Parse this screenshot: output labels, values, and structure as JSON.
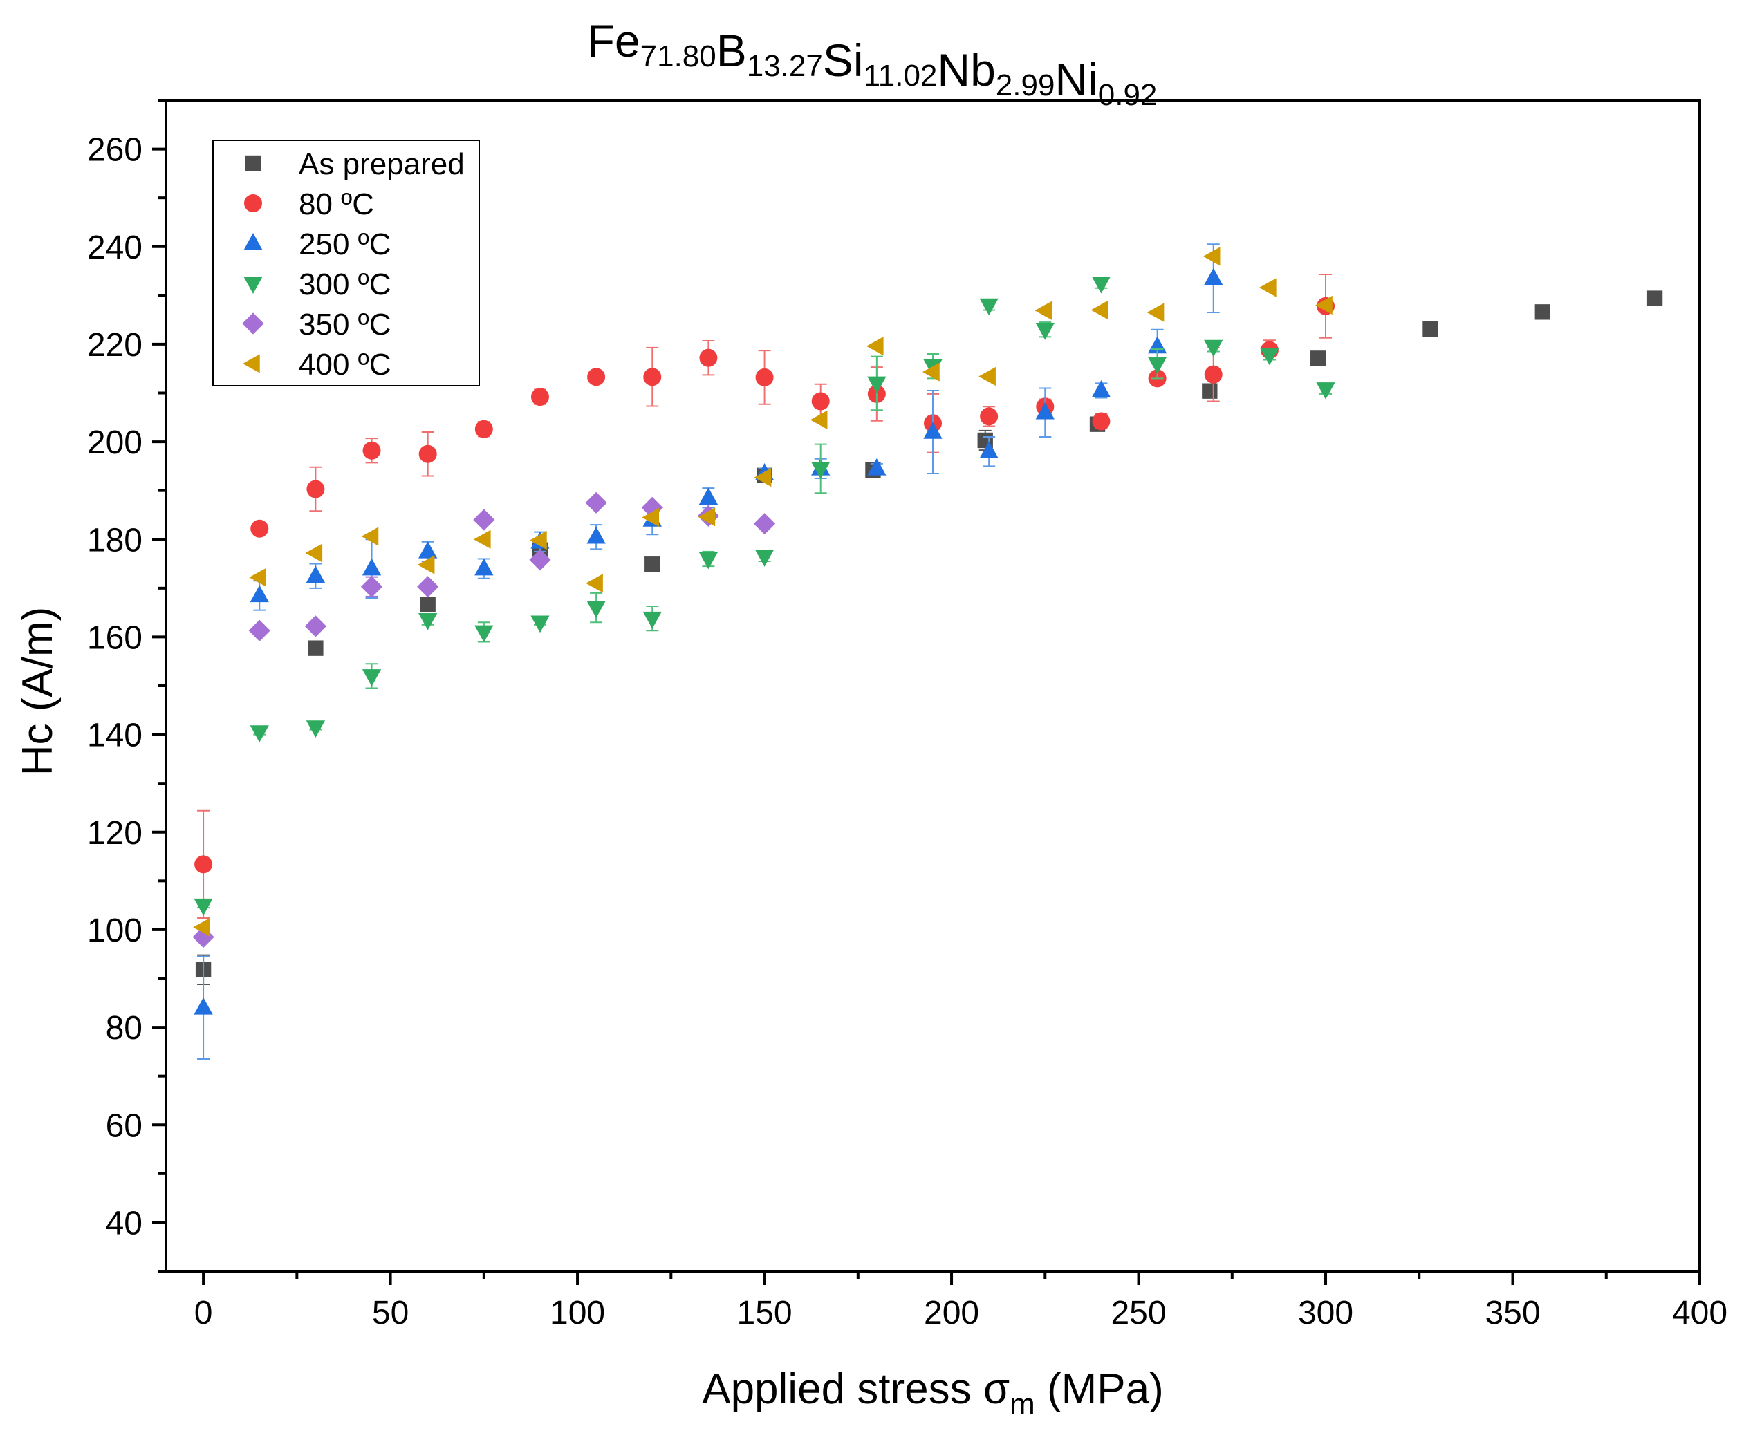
{
  "chart_data": {
    "type": "scatter",
    "title": {
      "parts": [
        {
          "text": "Fe",
          "sub": "71.80"
        },
        {
          "text": "B",
          "sub": "13.27"
        },
        {
          "text": "Si",
          "sub": "11.02"
        },
        {
          "text": "Nb",
          "sub": "2.99"
        },
        {
          "text": "Ni",
          "sub": "0.92"
        }
      ]
    },
    "xlabel": {
      "main": "Applied stress ",
      "symbol": "σ",
      "sub": "m",
      "unit": " (MPa)"
    },
    "ylabel": "Hc (A/m)",
    "xlim": [
      -10,
      400
    ],
    "ylim": [
      30,
      270
    ],
    "xticks": [
      0,
      50,
      100,
      150,
      200,
      250,
      300,
      350,
      400
    ],
    "yticks": [
      40,
      60,
      80,
      100,
      120,
      140,
      160,
      180,
      200,
      220,
      240,
      260
    ],
    "legend_position": "top-left",
    "series": [
      {
        "name": "As prepared",
        "marker": "square",
        "color": "#4d4d4d",
        "errcolor": "#555555",
        "x": [
          0,
          30,
          60,
          90,
          120,
          150,
          179,
          209,
          239,
          269,
          298,
          328,
          358,
          388
        ],
        "y": [
          91.8,
          157.7,
          166.6,
          177.8,
          174.9,
          193.1,
          194.2,
          200.3,
          203.6,
          210.4,
          217.1,
          223.1,
          226.6,
          229.4
        ],
        "err": [
          3,
          1,
          1,
          1,
          1,
          1,
          1,
          2,
          1,
          1,
          1,
          0,
          0,
          0
        ]
      },
      {
        "name": "80 ºC",
        "marker": "circle",
        "color": "#f03c3c",
        "errcolor": "#f07070",
        "x": [
          0,
          15,
          30,
          45,
          60,
          75,
          90,
          105,
          120,
          135,
          150,
          165,
          180,
          195,
          210,
          225,
          240,
          255,
          270,
          285,
          300
        ],
        "y": [
          113.4,
          182.2,
          190.3,
          198.2,
          197.5,
          202.6,
          209.2,
          213.3,
          213.3,
          217.2,
          213.2,
          208.3,
          209.8,
          203.8,
          205.2,
          207.2,
          204.2,
          213.0,
          213.8,
          218.8,
          227.8
        ],
        "err": [
          11,
          1,
          4.5,
          2.5,
          4.5,
          1.5,
          1.5,
          1,
          6,
          3.5,
          5.5,
          3.5,
          5.5,
          6,
          2,
          1.5,
          1.5,
          1,
          5.5,
          2,
          6.5
        ]
      },
      {
        "name": "250 ºC",
        "marker": "triangle-up",
        "color": "#1f6fe0",
        "errcolor": "#5a9ae8",
        "x": [
          0,
          15,
          30,
          45,
          60,
          75,
          90,
          105,
          120,
          135,
          150,
          165,
          180,
          195,
          210,
          225,
          240,
          255,
          270
        ],
        "y": [
          84,
          168.5,
          172.5,
          174,
          177.5,
          174,
          179.5,
          180.5,
          184,
          188.5,
          193.5,
          194.5,
          194.5,
          202,
          198,
          206,
          210.5,
          219.5,
          233.5
        ],
        "err": [
          10.5,
          3,
          2.5,
          6,
          2,
          2,
          2,
          2.5,
          3,
          2,
          1,
          2,
          1,
          8.5,
          3,
          5,
          1.5,
          3.5,
          7
        ]
      },
      {
        "name": "300 ºC",
        "marker": "triangle-down",
        "color": "#2eab5e",
        "errcolor": "#4fc07a",
        "x": [
          0,
          15,
          30,
          45,
          60,
          75,
          90,
          105,
          120,
          135,
          150,
          165,
          180,
          195,
          210,
          225,
          240,
          255,
          270,
          285,
          300
        ],
        "y": [
          105,
          140.5,
          141.5,
          152,
          163.5,
          161,
          163,
          166,
          163.8,
          176,
          176.5,
          194.5,
          212,
          215.5,
          228,
          223,
          232.5,
          216,
          219.5,
          217.8,
          210.8
        ],
        "err": [
          0.5,
          0.5,
          0.5,
          2.5,
          1,
          2,
          0.5,
          3,
          2.5,
          1.5,
          1,
          5,
          5.5,
          2.5,
          1,
          1.5,
          1,
          3,
          1,
          1,
          1
        ]
      },
      {
        "name": "350 ºC",
        "marker": "diamond",
        "color": "#a66fd6",
        "errcolor": "#a66fd6",
        "x": [
          0,
          15,
          30,
          45,
          60,
          75,
          90,
          105,
          120,
          135,
          150
        ],
        "y": [
          98.5,
          161.3,
          162.2,
          170.3,
          170.3,
          184,
          175.8,
          187.5,
          186.5,
          184.8,
          183.2
        ],
        "err": [
          0,
          0,
          0,
          2,
          0,
          0,
          0,
          0,
          0,
          0,
          0
        ]
      },
      {
        "name": "400 ºC",
        "marker": "triangle-left",
        "color": "#d09b00",
        "errcolor": "#d09b00",
        "x": [
          0,
          15,
          30,
          45,
          60,
          75,
          90,
          105,
          120,
          135,
          150,
          165,
          180,
          195,
          210,
          225,
          240,
          255,
          270,
          285,
          300
        ],
        "y": [
          100.5,
          172.2,
          177.2,
          180.6,
          174.8,
          180,
          179.8,
          171,
          184.5,
          184.6,
          192.7,
          204.5,
          219.6,
          214.3,
          213.4,
          226.9,
          227,
          226.5,
          238,
          231.6,
          228
        ],
        "err": [
          0,
          0,
          0,
          0,
          0,
          0,
          0,
          0,
          0,
          0,
          0,
          0,
          0,
          0,
          0,
          0,
          0,
          0,
          0,
          0,
          0
        ]
      }
    ]
  }
}
